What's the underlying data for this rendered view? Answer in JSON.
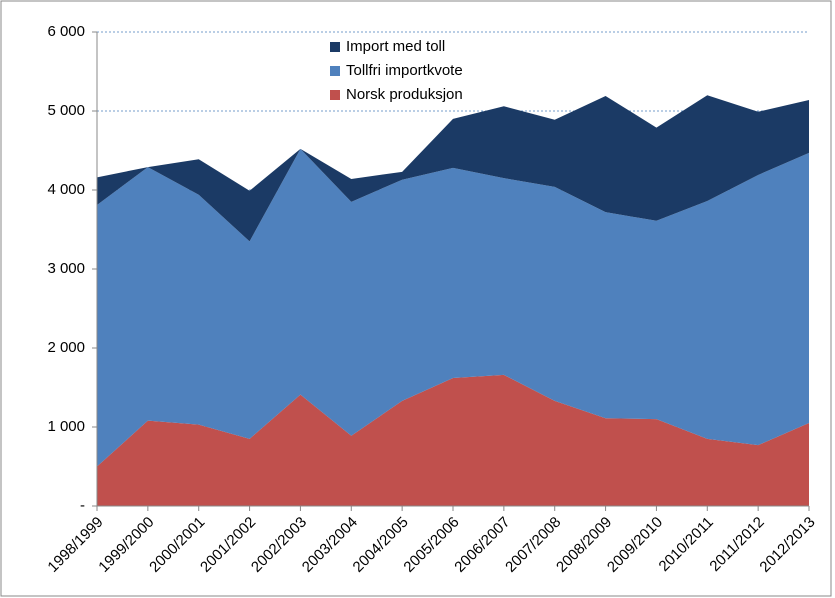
{
  "chart_data": {
    "type": "stacked_area",
    "categories": [
      "1998/1999",
      "1999/2000",
      "2000/2001",
      "2001/2002",
      "2002/2003",
      "2003/2004",
      "2004/2005",
      "2005/2006",
      "2006/2007",
      "2007/2008",
      "2008/2009",
      "2009/2010",
      "2010/2011",
      "2011/2012",
      "2012/2013"
    ],
    "series": [
      {
        "name": "Norsk produksjon",
        "color": "#c0504d",
        "values": [
          500,
          1080,
          1030,
          850,
          1410,
          890,
          1330,
          1620,
          1660,
          1330,
          1110,
          1100,
          850,
          770,
          1050
        ]
      },
      {
        "name": "Tollfri importkvote",
        "color": "#4f81bd",
        "values": [
          3310,
          3210,
          2910,
          2500,
          3110,
          2960,
          2800,
          2660,
          2490,
          2710,
          2610,
          2510,
          3010,
          3420,
          3420
        ]
      },
      {
        "name": "Import med toll",
        "color": "#1b3a65",
        "values": [
          350,
          0,
          450,
          640,
          0,
          290,
          100,
          620,
          910,
          850,
          1470,
          1180,
          1340,
          800,
          670
        ]
      }
    ],
    "ylim": [
      0,
      6000
    ],
    "yticks": [
      {
        "value": 0,
        "label": "-"
      },
      {
        "value": 1000,
        "label": "1 000"
      },
      {
        "value": 2000,
        "label": "2 000"
      },
      {
        "value": 3000,
        "label": "3 000"
      },
      {
        "value": 4000,
        "label": "4 000"
      },
      {
        "value": 5000,
        "label": "5 000"
      },
      {
        "value": 6000,
        "label": "6 000"
      }
    ],
    "grid": true,
    "legend": "top"
  }
}
